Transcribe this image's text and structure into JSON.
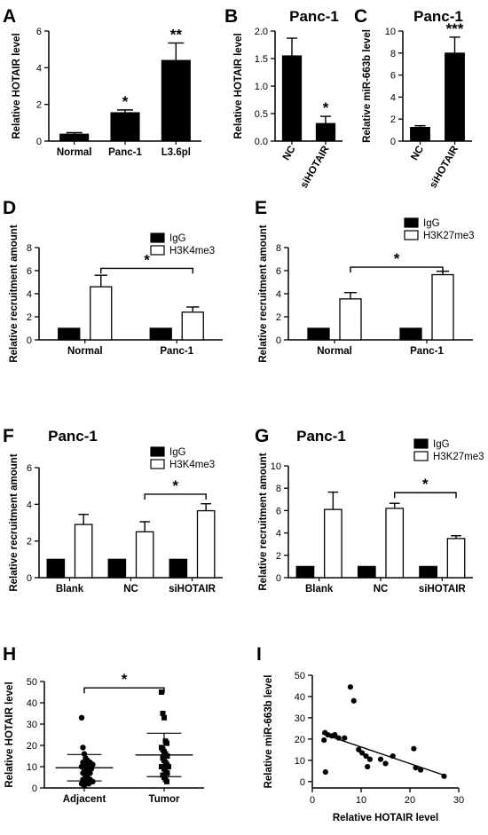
{
  "chart_data": [
    {
      "id": "A",
      "letter": "A",
      "type": "bar",
      "title": "",
      "ylabel": "Relative HOTAIR level",
      "xlabel": "",
      "ylim": [
        0,
        6
      ],
      "yticks": [
        0,
        2,
        4,
        6
      ],
      "categories": [
        "Normal",
        "Panc-1",
        "L3.6pl"
      ],
      "values": [
        0.38,
        1.55,
        4.4
      ],
      "errors": [
        0.08,
        0.15,
        0.95
      ],
      "fill": "#000000",
      "tick_rotation": 0,
      "annotations": [
        {
          "index": 1,
          "text": "*"
        },
        {
          "index": 2,
          "text": "**"
        }
      ]
    },
    {
      "id": "B",
      "letter": "B",
      "type": "bar",
      "title": "Panc-1",
      "ylabel": "Relative HOTAIR level",
      "xlabel": "",
      "ylim": [
        0,
        2.0
      ],
      "yticks": [
        0.0,
        0.5,
        1.0,
        1.5,
        2.0
      ],
      "categories": [
        "NC",
        "siHOTAIR"
      ],
      "values": [
        1.55,
        0.32
      ],
      "errors": [
        0.32,
        0.13
      ],
      "fill": "#000000",
      "tick_rotation": -60,
      "annotations": [
        {
          "index": 1,
          "text": "*"
        }
      ]
    },
    {
      "id": "C",
      "letter": "C",
      "type": "bar",
      "title": "Panc-1",
      "ylabel": "Relative miR-663b level",
      "xlabel": "",
      "ylim": [
        0,
        10
      ],
      "yticks": [
        0,
        2,
        4,
        6,
        8,
        10
      ],
      "categories": [
        "NC",
        "siHOTAIR"
      ],
      "values": [
        1.25,
        8.0
      ],
      "errors": [
        0.15,
        1.45
      ],
      "fill": "#000000",
      "tick_rotation": -60,
      "annotations": [
        {
          "index": 1,
          "text": "***"
        }
      ]
    },
    {
      "id": "D",
      "letter": "D",
      "type": "bar",
      "title": "",
      "ylabel": "Relative recruitment amount",
      "xlabel": "",
      "ylim": [
        0,
        8
      ],
      "yticks": [
        0,
        2,
        4,
        6,
        8
      ],
      "categories": [
        "Normal",
        "Panc-1"
      ],
      "series": [
        {
          "name": "IgG",
          "values": [
            1.0,
            1.0
          ],
          "errors": [
            0,
            0
          ],
          "fill": "#000000"
        },
        {
          "name": "H3K4me3",
          "values": [
            4.6,
            2.4
          ],
          "errors": [
            1.0,
            0.45
          ],
          "fill": "#ffffff"
        }
      ],
      "bracket": {
        "from": 0,
        "to": 1,
        "series": 1,
        "y": 6.2,
        "text": "*"
      },
      "tick_rotation": 0
    },
    {
      "id": "E",
      "letter": "E",
      "type": "bar",
      "title": "",
      "ylabel": "Relative recruitment amount",
      "xlabel": "",
      "ylim": [
        0,
        8
      ],
      "yticks": [
        0,
        2,
        4,
        6,
        8
      ],
      "categories": [
        "Normal",
        "Panc-1"
      ],
      "series": [
        {
          "name": "IgG",
          "values": [
            1.0,
            1.0
          ],
          "errors": [
            0,
            0
          ],
          "fill": "#000000"
        },
        {
          "name": "H3K27me3",
          "values": [
            3.55,
            5.65
          ],
          "errors": [
            0.55,
            0.3
          ],
          "fill": "#ffffff"
        }
      ],
      "bracket": {
        "from": 0,
        "to": 1,
        "series": 1,
        "y": 6.3,
        "text": "*"
      },
      "tick_rotation": 0
    },
    {
      "id": "F",
      "letter": "F",
      "type": "bar",
      "title": "Panc-1",
      "ylabel": "Relative recruitment amount",
      "xlabel": "",
      "ylim": [
        0,
        6
      ],
      "yticks": [
        0,
        2,
        4,
        6
      ],
      "categories": [
        "Blank",
        "NC",
        "siHOTAIR"
      ],
      "series": [
        {
          "name": "IgG",
          "values": [
            1.0,
            1.0,
            1.0
          ],
          "errors": [
            0,
            0,
            0
          ],
          "fill": "#000000"
        },
        {
          "name": "H3K4me3",
          "values": [
            2.9,
            2.5,
            3.65
          ],
          "errors": [
            0.55,
            0.55,
            0.38
          ],
          "fill": "#ffffff"
        }
      ],
      "bracket": {
        "from": 1,
        "to": 2,
        "series": 1,
        "y": 4.55,
        "text": "*"
      },
      "tick_rotation": 0
    },
    {
      "id": "G",
      "letter": "G",
      "type": "bar",
      "title": "Panc-1",
      "ylabel": "Relative recruitment amount",
      "xlabel": "",
      "ylim": [
        0,
        10
      ],
      "yticks": [
        0,
        2,
        4,
        6,
        8,
        10
      ],
      "categories": [
        "Blank",
        "NC",
        "siHOTAIR"
      ],
      "series": [
        {
          "name": "IgG",
          "values": [
            1.0,
            1.0,
            1.0
          ],
          "errors": [
            0,
            0,
            0
          ],
          "fill": "#000000"
        },
        {
          "name": "H3K27me3",
          "values": [
            6.1,
            6.2,
            3.5
          ],
          "errors": [
            1.55,
            0.45,
            0.25
          ],
          "fill": "#ffffff"
        }
      ],
      "bracket": {
        "from": 1,
        "to": 2,
        "series": 1,
        "y": 7.6,
        "text": "*"
      },
      "tick_rotation": 0
    },
    {
      "id": "H",
      "letter": "H",
      "type": "scatter",
      "title": "",
      "ylabel": "Relative HOTAIR level",
      "xlabel": "",
      "ylim": [
        0,
        50
      ],
      "yticks": [
        0,
        10,
        20,
        30,
        40,
        50
      ],
      "categories": [
        "Adjacent",
        "Tumor"
      ],
      "groups": [
        {
          "name": "Adjacent",
          "marker": "circle",
          "mean": 9.5,
          "sd": 6.2,
          "values": [
            33,
            19,
            16,
            14,
            13,
            13,
            12,
            12,
            11,
            11,
            10,
            10,
            9,
            9,
            8,
            8,
            7,
            7,
            6,
            5,
            5,
            4,
            4,
            3,
            3,
            2,
            2,
            1
          ]
        },
        {
          "name": "Tumor",
          "marker": "square",
          "mean": 15.5,
          "sd": 10.2,
          "values": [
            45,
            35,
            33,
            22,
            21,
            19,
            18,
            17,
            16,
            15,
            15,
            14,
            13,
            12,
            11,
            10,
            10,
            9,
            8,
            7,
            7,
            6,
            5,
            4,
            3
          ]
        }
      ],
      "bracket": {
        "y": 47,
        "text": "*"
      }
    },
    {
      "id": "I",
      "letter": "I",
      "type": "scatter",
      "title": "",
      "xlabel": "Relative HOTAIR level",
      "ylabel": "Relative miR-663b level",
      "xlim": [
        0,
        30
      ],
      "xticks": [
        0,
        10,
        20,
        30
      ],
      "ylim": [
        -3,
        50
      ],
      "yticks": [
        0,
        10,
        20,
        30,
        40,
        50
      ],
      "points": [
        {
          "x": 2.4,
          "y": 19.5
        },
        {
          "x": 2.6,
          "y": 23
        },
        {
          "x": 2.7,
          "y": 4.5
        },
        {
          "x": 3.2,
          "y": 22
        },
        {
          "x": 4.0,
          "y": 21.5
        },
        {
          "x": 4.6,
          "y": 22
        },
        {
          "x": 5.4,
          "y": 20.5
        },
        {
          "x": 6.6,
          "y": 20.5
        },
        {
          "x": 7.8,
          "y": 44.5
        },
        {
          "x": 8.5,
          "y": 38
        },
        {
          "x": 9.5,
          "y": 15
        },
        {
          "x": 10.2,
          "y": 13.5
        },
        {
          "x": 11,
          "y": 12
        },
        {
          "x": 11.3,
          "y": 7
        },
        {
          "x": 11.8,
          "y": 10.5
        },
        {
          "x": 14,
          "y": 10.5
        },
        {
          "x": 15,
          "y": 8.5
        },
        {
          "x": 16.5,
          "y": 12
        },
        {
          "x": 20.8,
          "y": 15.5
        },
        {
          "x": 21.2,
          "y": 6.5
        },
        {
          "x": 22.2,
          "y": 5.5
        },
        {
          "x": 27,
          "y": 2.5
        }
      ],
      "trendline": [
        [
          2,
          22.5
        ],
        [
          27,
          3
        ]
      ]
    }
  ]
}
